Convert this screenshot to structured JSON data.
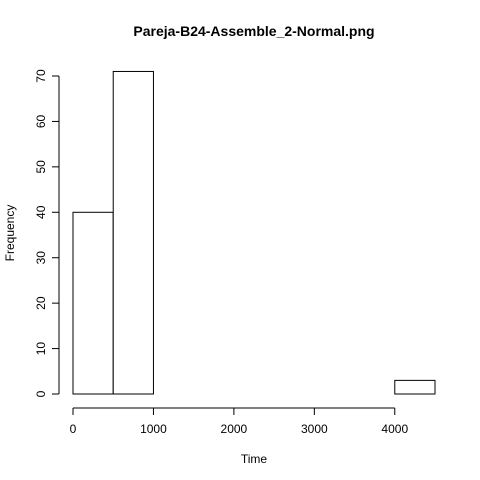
{
  "chart_data": {
    "type": "bar",
    "title": "Pareja-B24-Assemble_2-Normal.png",
    "xlabel": "Time",
    "ylabel": "Frequency",
    "bins": [
      {
        "start": 0,
        "end": 500,
        "count": 40
      },
      {
        "start": 500,
        "end": 1000,
        "count": 71
      },
      {
        "start": 1000,
        "end": 1500,
        "count": 0
      },
      {
        "start": 1500,
        "end": 2000,
        "count": 0
      },
      {
        "start": 2000,
        "end": 2500,
        "count": 0
      },
      {
        "start": 2500,
        "end": 3000,
        "count": 0
      },
      {
        "start": 3000,
        "end": 3500,
        "count": 0
      },
      {
        "start": 3500,
        "end": 4000,
        "count": 0
      },
      {
        "start": 4000,
        "end": 4500,
        "count": 3
      }
    ],
    "xlim": [
      0,
      4500
    ],
    "ylim": [
      0,
      71
    ],
    "x_ticks": [
      "0",
      "1000",
      "2000",
      "3000",
      "4000"
    ],
    "y_ticks": [
      "0",
      "10",
      "20",
      "30",
      "40",
      "50",
      "60",
      "70"
    ],
    "grid": false,
    "colors": {
      "bar_fill": "#ffffff",
      "bar_stroke": "#000000"
    }
  }
}
